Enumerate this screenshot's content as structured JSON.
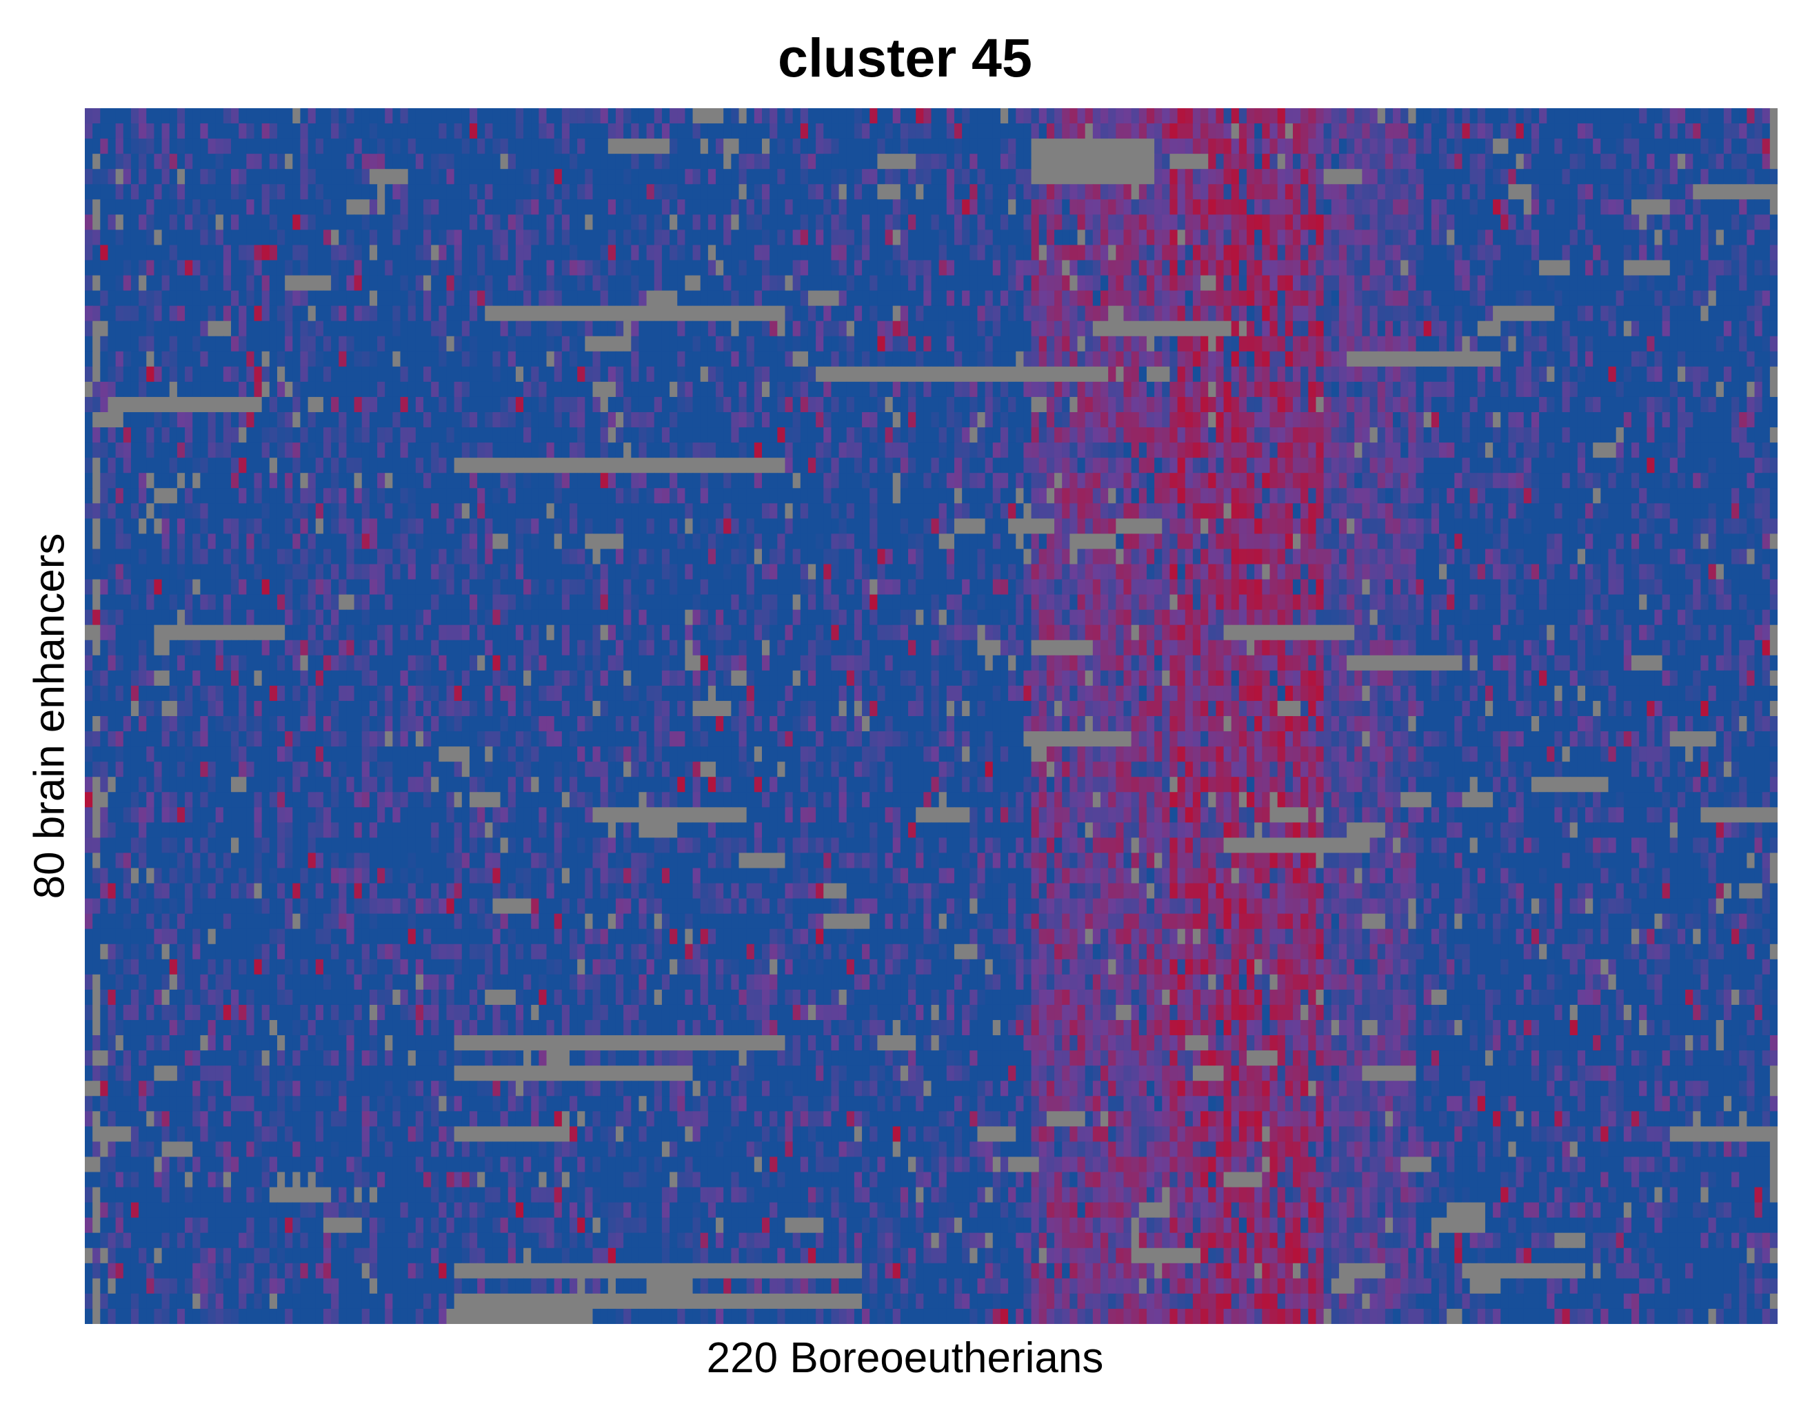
{
  "chart_data": {
    "type": "heatmap",
    "title": "cluster 45",
    "xlabel": "220 Boreoeutherians",
    "ylabel": "80 brain enhancers",
    "n_rows": 80,
    "n_cols": 220,
    "colors": {
      "low": "#174f9a",
      "mid": "#6a3f98",
      "high": "#b4123a",
      "missing": "#808080"
    },
    "legend": "none",
    "grid": false,
    "ticks": "none",
    "high_signal_column_bands": [
      {
        "cols": [
          123,
          140
        ],
        "level": "high"
      },
      {
        "cols": [
          141,
          160
        ],
        "level": "very high"
      },
      {
        "cols": [
          161,
          172
        ],
        "level": "medium"
      }
    ],
    "missing_blocks": [
      {
        "row": 2,
        "cols": [
          123,
          138
        ]
      },
      {
        "row": 3,
        "cols": [
          123,
          138
        ]
      },
      {
        "row": 4,
        "cols": [
          123,
          138
        ]
      },
      {
        "row": 13,
        "cols": [
          52,
          90
        ]
      },
      {
        "row": 13,
        "cols": [
          183,
          190
        ]
      },
      {
        "row": 17,
        "cols": [
          95,
          132
        ]
      },
      {
        "row": 23,
        "cols": [
          48,
          90
        ]
      },
      {
        "row": 46,
        "cols": [
          66,
          85
        ]
      },
      {
        "row": 46,
        "cols": [
          210,
          219
        ]
      },
      {
        "row": 61,
        "cols": [
          48,
          90
        ]
      },
      {
        "row": 63,
        "cols": [
          48,
          78
        ]
      },
      {
        "row": 67,
        "cols": [
          48,
          62
        ]
      },
      {
        "row": 67,
        "cols": [
          1,
          5
        ]
      },
      {
        "row": 76,
        "cols": [
          48,
          100
        ]
      },
      {
        "row": 78,
        "cols": [
          48,
          100
        ]
      },
      {
        "row": 79,
        "cols": [
          47,
          65
        ]
      }
    ]
  }
}
